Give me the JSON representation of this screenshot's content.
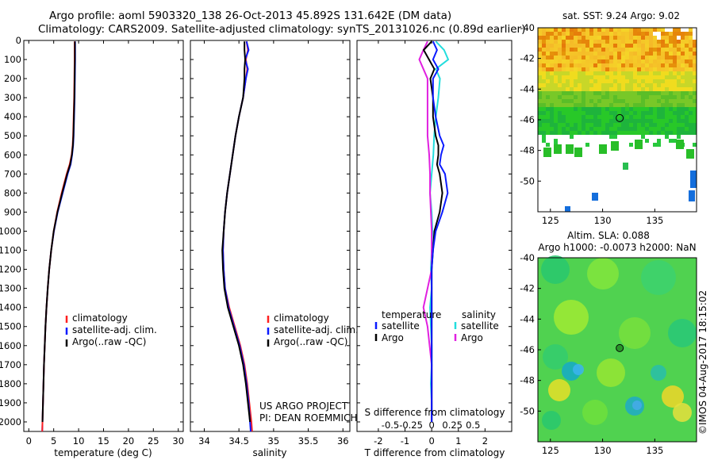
{
  "header": {
    "line1": "Argo profile: aoml 5903320_138 26-Oct-2013 45.892S 131.642E (DM data)",
    "line2": "Climatology: CARS2009. Satellite-adjusted climatology: synTS_20131026.nc (0.89d earlier)"
  },
  "colors": {
    "climatology": "#ff2020",
    "satellite": "#0a1aff",
    "argo": "#000000",
    "sal_sat": "#22dddd",
    "sal_argo": "#e020e0"
  },
  "chart_data": [
    {
      "type": "line",
      "id": "temperature",
      "xlabel": "temperature (deg C)",
      "ylabel": "",
      "xlim": [
        -1,
        31
      ],
      "ylim": [
        2050,
        0
      ],
      "xticks": [
        "0",
        "5",
        "10",
        "15",
        "20",
        "25",
        "30"
      ],
      "yticks": [
        "0",
        "100",
        "200",
        "300",
        "400",
        "500",
        "600",
        "700",
        "800",
        "900",
        "1000",
        "1100",
        "1200",
        "1300",
        "1400",
        "1500",
        "1600",
        "1700",
        "1800",
        "1900",
        "2000"
      ],
      "legend": [
        "climatology",
        "satellite-adj. clim.",
        "Argo(..raw -QC)"
      ],
      "series": [
        {
          "name": "climatology",
          "depth": [
            5,
            100,
            200,
            300,
            400,
            500,
            550,
            600,
            650,
            700,
            800,
            900,
            1000,
            1100,
            1200,
            1300,
            1400,
            1500,
            1600,
            1700,
            1800,
            1900,
            2000,
            2050
          ],
          "values": [
            9.2,
            9.2,
            9.15,
            9.1,
            9.0,
            8.9,
            8.8,
            8.6,
            8.2,
            7.6,
            6.6,
            5.7,
            5.0,
            4.5,
            4.1,
            3.8,
            3.55,
            3.35,
            3.2,
            3.05,
            2.95,
            2.85,
            2.75,
            2.7
          ]
        },
        {
          "name": "satellite-adj. clim.",
          "depth": [
            5,
            100,
            200,
            300,
            400,
            500,
            550,
            600,
            650,
            700,
            800,
            900,
            1000,
            1100,
            1200,
            1300,
            1400,
            1500,
            1600,
            1700,
            1800,
            1900,
            2000,
            2050
          ],
          "values": [
            9.3,
            9.3,
            9.25,
            9.2,
            9.1,
            9.0,
            8.9,
            8.7,
            8.4,
            7.8,
            6.8,
            5.8,
            5.05,
            4.5,
            4.1,
            3.8,
            3.55,
            3.35,
            3.2,
            3.05,
            2.95,
            2.85,
            2.75,
            2.7
          ]
        },
        {
          "name": "Argo(..raw -QC)",
          "depth": [
            5,
            100,
            200,
            300,
            400,
            500,
            550,
            600,
            650,
            700,
            800,
            900,
            1000,
            1100,
            1200,
            1300,
            1400,
            1500,
            1600,
            1700,
            1800,
            1900,
            2000
          ],
          "values": [
            9.25,
            9.25,
            9.2,
            9.15,
            9.05,
            8.95,
            8.85,
            8.65,
            8.3,
            7.7,
            6.7,
            5.75,
            5.0,
            4.5,
            4.1,
            3.8,
            3.55,
            3.35,
            3.2,
            3.05,
            2.95,
            2.85,
            2.75
          ]
        }
      ]
    },
    {
      "type": "line",
      "id": "salinity",
      "xlabel": "salinity",
      "ylabel": "",
      "xlim": [
        33.8,
        36.1
      ],
      "ylim": [
        2050,
        0
      ],
      "xticks": [
        "34",
        "34.5",
        "35",
        "35.5",
        "36"
      ],
      "legend": [
        "climatology",
        "satellite-adj. clim.",
        "Argo(..raw -QC)"
      ],
      "annotation": [
        "US ARGO PROJECT",
        "PI: DEAN ROEMMICH"
      ],
      "series": [
        {
          "name": "climatology",
          "depth": [
            5,
            50,
            100,
            150,
            200,
            300,
            400,
            500,
            600,
            700,
            800,
            900,
            1000,
            1100,
            1200,
            1300,
            1400,
            1500,
            1600,
            1700,
            1800,
            1900,
            2000,
            2050
          ],
          "values": [
            34.61,
            34.63,
            34.6,
            34.62,
            34.6,
            34.56,
            34.5,
            34.45,
            34.41,
            34.37,
            34.33,
            34.3,
            34.28,
            34.27,
            34.28,
            34.3,
            34.36,
            34.44,
            34.52,
            34.58,
            34.62,
            34.65,
            34.68,
            34.69
          ]
        },
        {
          "name": "satellite-adj. clim.",
          "depth": [
            5,
            50,
            100,
            150,
            200,
            300,
            400,
            500,
            600,
            700,
            800,
            900,
            1000,
            1100,
            1200,
            1300,
            1400,
            1500,
            1600,
            1700,
            1800,
            1900,
            2000,
            2050
          ],
          "values": [
            34.61,
            34.64,
            34.59,
            34.63,
            34.6,
            34.56,
            34.5,
            34.45,
            34.41,
            34.37,
            34.33,
            34.3,
            34.28,
            34.27,
            34.28,
            34.3,
            34.35,
            34.43,
            34.51,
            34.57,
            34.61,
            34.64,
            34.66,
            34.67
          ]
        },
        {
          "name": "Argo(..raw -QC)",
          "depth": [
            5,
            50,
            100,
            150,
            200,
            300,
            400,
            500,
            600,
            700,
            800,
            900,
            1000,
            1100,
            1200,
            1300,
            1400,
            1500,
            1600,
            1700,
            1800,
            1900,
            2000
          ],
          "values": [
            34.58,
            34.58,
            34.59,
            34.58,
            34.58,
            34.56,
            34.5,
            34.45,
            34.41,
            34.37,
            34.33,
            34.3,
            34.28,
            34.26,
            34.27,
            34.29,
            34.34,
            34.42,
            34.5,
            34.56,
            34.6,
            34.63,
            34.66
          ]
        }
      ]
    },
    {
      "type": "line",
      "id": "difference",
      "xlabel": "T difference from climatology",
      "ylabel": "",
      "xlim": [
        -2.8,
        3.0
      ],
      "ylim": [
        2050,
        0
      ],
      "xticks": [
        "-2",
        "-1",
        "0",
        "1",
        "2"
      ],
      "sticks": [
        "-0.5",
        "-0.25",
        "0",
        "0.25",
        "0.5"
      ],
      "s_label": "S difference from climatology",
      "legend": {
        "temperature": "temperature",
        "salinity": "salinity",
        "satellite": "satellite",
        "argo": "Argo"
      },
      "series": [
        {
          "name": "temperature Argo",
          "depth": [
            5,
            50,
            100,
            150,
            200,
            300,
            400,
            500,
            550,
            600,
            650,
            700,
            800,
            900,
            1000,
            1100,
            1200,
            1300,
            1400,
            1500,
            1600,
            1700,
            1800,
            1900,
            2000
          ],
          "values": [
            0.0,
            -0.3,
            -0.1,
            0.1,
            -0.05,
            0.05,
            0.05,
            0.15,
            0.25,
            0.25,
            0.2,
            0.3,
            0.4,
            0.3,
            0.1,
            0.05,
            0.0,
            0.0,
            0.0,
            0.0,
            0.0,
            0.0,
            0.0,
            0.0,
            0.0
          ]
        },
        {
          "name": "temperature satellite",
          "depth": [
            5,
            50,
            100,
            150,
            200,
            300,
            400,
            500,
            550,
            600,
            650,
            700,
            800,
            900,
            1000,
            1100,
            1200,
            1300,
            1400,
            1500,
            1600,
            1700,
            1800,
            1900,
            2000
          ],
          "values": [
            0.05,
            0.2,
            0.05,
            0.25,
            0.05,
            0.05,
            0.15,
            0.3,
            0.45,
            0.35,
            0.3,
            0.5,
            0.6,
            0.4,
            0.15,
            0.05,
            0.0,
            0.0,
            0.0,
            0.0,
            0.0,
            0.0,
            0.0,
            0.0,
            0.0
          ]
        },
        {
          "name": "salinity satellite",
          "depth": [
            5,
            50,
            100,
            150,
            200,
            300,
            400,
            500,
            600,
            700,
            800,
            900,
            1000,
            1100,
            1200,
            1300,
            1400,
            1500,
            1600,
            1700,
            1800,
            1900,
            2000
          ],
          "values": [
            0.05,
            0.15,
            0.2,
            0.05,
            0.1,
            0.08,
            0.05,
            0.03,
            0.02,
            0.0,
            -0.02,
            0.0,
            0.01,
            0.0,
            -0.01,
            0.0,
            -0.02,
            -0.01,
            0.0,
            0.0,
            -0.01,
            0.0,
            0.0
          ]
        },
        {
          "name": "salinity Argo",
          "depth": [
            5,
            50,
            100,
            150,
            200,
            400,
            500,
            600,
            700,
            800,
            1000,
            1200,
            1400,
            1500,
            1700,
            1900,
            2000
          ],
          "values": [
            -0.05,
            -0.1,
            -0.15,
            -0.1,
            -0.05,
            -0.05,
            -0.05,
            -0.03,
            -0.02,
            -0.02,
            0.0,
            0.0,
            -0.1,
            -0.05,
            0.0,
            0.0,
            0.0
          ]
        }
      ]
    }
  ],
  "maps": {
    "sst": {
      "title": "sat. SST: 9.24  Argo: 9.02",
      "xticks": [
        "125",
        "130",
        "135"
      ],
      "yticks": [
        "-40",
        "-42",
        "-44",
        "-46",
        "-48",
        "-50"
      ],
      "xlim": [
        123.8,
        139
      ],
      "ylim": [
        -52,
        -40
      ],
      "marker": {
        "lon": 131.64,
        "lat": -45.89
      }
    },
    "sla": {
      "title1": "Altim. SLA: 0.088",
      "title2": "Argo h1000: -0.0073 h2000: NaN",
      "xticks": [
        "125",
        "130",
        "135"
      ],
      "yticks": [
        "-40",
        "-42",
        "-44",
        "-46",
        "-48",
        "-50"
      ],
      "xlim": [
        123.8,
        139
      ],
      "ylim": [
        -52,
        -40
      ],
      "marker": {
        "lon": 131.64,
        "lat": -45.89
      }
    }
  },
  "footer_stamp": "©IMOS 04-Aug-2017 18:15:02"
}
